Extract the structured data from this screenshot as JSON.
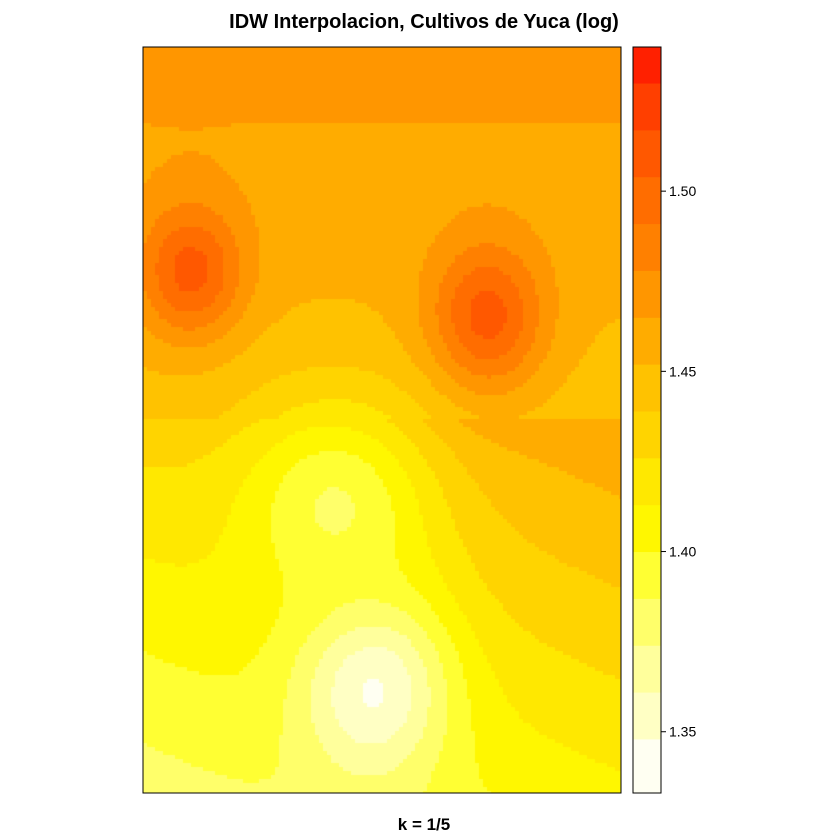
{
  "chart_data": {
    "type": "heatmap",
    "title": "IDW Interpolacion, Cultivos de Yuca (log)",
    "xlabel": "k = 1/5",
    "ylabel": "",
    "colorbar": {
      "range": [
        1.333,
        1.54
      ],
      "breaks": [
        1.333,
        1.348,
        1.361,
        1.374,
        1.387,
        1.4,
        1.413,
        1.426,
        1.439,
        1.452,
        1.465,
        1.478,
        1.491,
        1.504,
        1.517,
        1.53,
        1.54
      ],
      "colors": [
        "#FFFFF2",
        "#FFFFC4",
        "#FFFF9C",
        "#FFFF6A",
        "#FFFF33",
        "#FFF700",
        "#FFE800",
        "#FFD400",
        "#FFC200",
        "#FFAC00",
        "#FF9600",
        "#FF8000",
        "#FF6D00",
        "#FF5800",
        "#FF3F00",
        "#FF2000"
      ],
      "ticks": [
        {
          "value": 1.35,
          "label": "1.35"
        },
        {
          "value": 1.4,
          "label": "1.40"
        },
        {
          "value": 1.45,
          "label": "1.45"
        },
        {
          "value": 1.5,
          "label": "1.50"
        }
      ]
    },
    "grid": false,
    "field": {
      "base": {
        "top": 1.47,
        "mid": 1.445,
        "bottom": 1.392
      },
      "peaks": [
        {
          "label": "high-left",
          "value": 1.51
        },
        {
          "label": "high-center-right",
          "value": 1.51
        },
        {
          "label": "low-center-bottom",
          "value": 1.345
        },
        {
          "label": "low-center",
          "value": 1.385
        }
      ]
    }
  }
}
